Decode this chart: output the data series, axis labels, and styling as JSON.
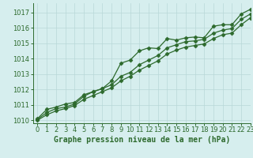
{
  "xlabel": "Graphe pression niveau de la mer (hPa)",
  "xlim": [
    -0.5,
    23
  ],
  "ylim": [
    1009.8,
    1017.6
  ],
  "yticks": [
    1010,
    1011,
    1012,
    1013,
    1014,
    1015,
    1016,
    1017
  ],
  "xticks": [
    0,
    1,
    2,
    3,
    4,
    5,
    6,
    7,
    8,
    9,
    10,
    11,
    12,
    13,
    14,
    15,
    16,
    17,
    18,
    19,
    20,
    21,
    22,
    23
  ],
  "background_color": "#d6eeee",
  "grid_color": "#b8d8d8",
  "line_color": "#2d6a2d",
  "series1": [
    1010.1,
    1010.7,
    1010.85,
    1011.05,
    1011.15,
    1011.65,
    1011.85,
    1012.05,
    1012.55,
    1013.7,
    1013.9,
    1014.5,
    1014.7,
    1014.65,
    1015.3,
    1015.2,
    1015.35,
    1015.4,
    1015.35,
    1016.1,
    1016.2,
    1016.2,
    1016.9,
    1017.2
  ],
  "series2": [
    1010.05,
    1010.5,
    1010.75,
    1010.85,
    1011.05,
    1011.55,
    1011.85,
    1012.05,
    1012.3,
    1012.85,
    1013.1,
    1013.6,
    1013.9,
    1014.2,
    1014.7,
    1014.9,
    1015.1,
    1015.15,
    1015.25,
    1015.65,
    1015.85,
    1015.95,
    1016.55,
    1016.9
  ],
  "series3": [
    1010.0,
    1010.35,
    1010.6,
    1010.75,
    1010.95,
    1011.35,
    1011.6,
    1011.85,
    1012.1,
    1012.55,
    1012.85,
    1013.25,
    1013.55,
    1013.85,
    1014.3,
    1014.55,
    1014.75,
    1014.85,
    1014.95,
    1015.3,
    1015.55,
    1015.65,
    1016.2,
    1016.65
  ],
  "marker": "D",
  "marker_size": 2.5,
  "line_width": 0.9,
  "xlabel_fontsize": 7,
  "tick_fontsize": 6
}
